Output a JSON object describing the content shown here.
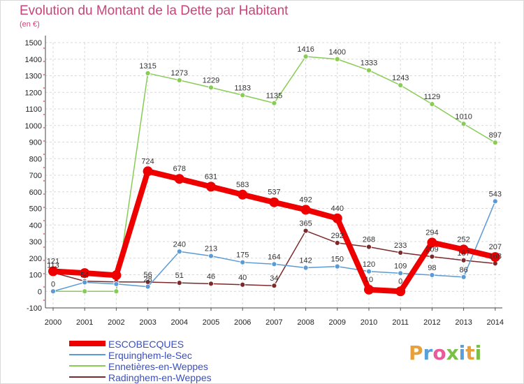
{
  "title": "Evolution du Montant de la Dette par Habitant",
  "subtitle": "(en €)",
  "brand": {
    "text": "Proxiti",
    "colors": [
      "#e8a13a",
      "#5aa0d8",
      "#e85a9a",
      "#7abf4a",
      "#5aa0d8",
      "#e8a13a",
      "#7abf4a"
    ]
  },
  "chart_data": {
    "type": "line",
    "x": [
      2000,
      2001,
      2002,
      2003,
      2004,
      2005,
      2006,
      2007,
      2008,
      2009,
      2010,
      2011,
      2012,
      2013,
      2014
    ],
    "xlabel": "",
    "ylabel": "",
    "ylim": [
      -100,
      1500
    ],
    "yticks": [
      -100,
      0,
      100,
      200,
      300,
      400,
      500,
      600,
      700,
      800,
      900,
      1000,
      1100,
      1200,
      1300,
      1400,
      1500
    ],
    "grid": true,
    "legend_position": "bottom-left",
    "series": [
      {
        "name": "ESCOBECQUES",
        "color": "#ee0000",
        "width": 8,
        "point_radius": 7,
        "values": [
          121,
          110,
          97,
          724,
          678,
          631,
          583,
          537,
          492,
          440,
          10,
          0,
          294,
          252,
          207
        ],
        "labels": [
          "121",
          "",
          "",
          "724",
          "678",
          "631",
          "583",
          "537",
          "492",
          "440",
          "10",
          "0",
          "294",
          "252",
          "207"
        ]
      },
      {
        "name": "Erquinghem-le-Sec",
        "color": "#5b9bd5",
        "width": 1.5,
        "point_radius": 3.5,
        "values": [
          0,
          54,
          44,
          28,
          240,
          213,
          175,
          164,
          142,
          150,
          120,
          109,
          98,
          86,
          543
        ],
        "labels": [
          "0",
          "54",
          "",
          "28",
          "240",
          "213",
          "175",
          "164",
          "142",
          "150",
          "120",
          "109",
          "98",
          "86",
          "543"
        ]
      },
      {
        "name": "Ennetières-en-Weppes",
        "color": "#88cc55",
        "width": 1.5,
        "point_radius": 3.5,
        "values": [
          0,
          0,
          0,
          1315,
          1273,
          1229,
          1183,
          1135,
          1416,
          1400,
          1333,
          1243,
          1129,
          1010,
          897
        ],
        "labels": [
          "",
          "",
          "",
          "1315",
          "1273",
          "1229",
          "1183",
          "1135",
          "1416",
          "1400",
          "1333",
          "1243",
          "1129",
          "1010",
          "897"
        ]
      },
      {
        "name": "Radinghem-en-Weppes",
        "color": "#7a2a2a",
        "width": 1.5,
        "point_radius": 3.5,
        "values": [
          113,
          61,
          57,
          56,
          51,
          46,
          40,
          34,
          365,
          292,
          268,
          233,
          209,
          187,
          168
        ],
        "labels": [
          "113",
          "",
          "",
          "56",
          "51",
          "46",
          "40",
          "34",
          "365",
          "292",
          "268",
          "233",
          "209",
          "187",
          "168"
        ]
      }
    ]
  }
}
